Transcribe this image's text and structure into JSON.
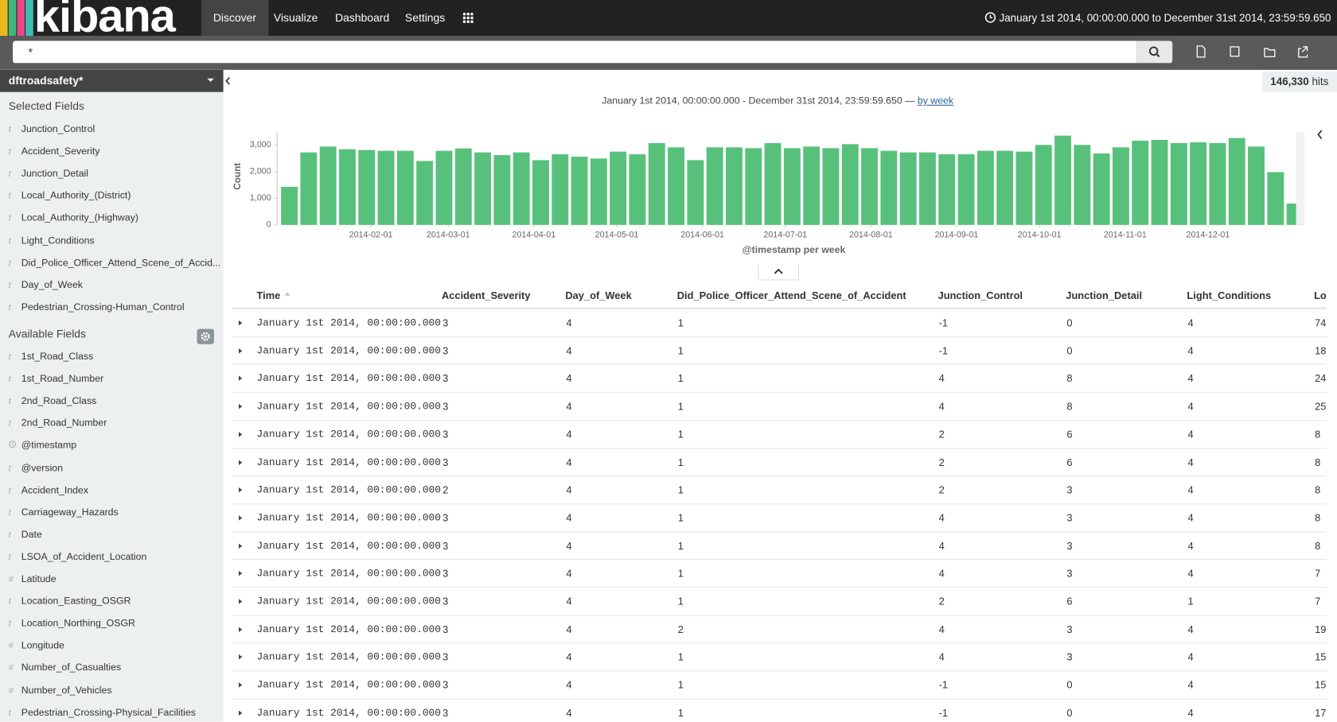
{
  "nav": {
    "logo": "kibana",
    "tabs": [
      "Discover",
      "Visualize",
      "Dashboard",
      "Settings"
    ],
    "time_range": "January 1st 2014, 00:00:00.000 to December 31st 2014, 23:59:59.650"
  },
  "search": {
    "query": "*"
  },
  "sidebar": {
    "index_pattern": "dftroadsafety*",
    "selected_title": "Selected Fields",
    "selected_fields": [
      {
        "type": "t",
        "name": "Junction_Control"
      },
      {
        "type": "t",
        "name": "Accident_Severity"
      },
      {
        "type": "t",
        "name": "Junction_Detail"
      },
      {
        "type": "t",
        "name": "Local_Authority_(District)"
      },
      {
        "type": "t",
        "name": "Local_Authority_(Highway)"
      },
      {
        "type": "t",
        "name": "Light_Conditions"
      },
      {
        "type": "t",
        "name": "Did_Police_Officer_Attend_Scene_of_Accid..."
      },
      {
        "type": "t",
        "name": "Day_of_Week"
      },
      {
        "type": "t",
        "name": "Pedestrian_Crossing-Human_Control"
      }
    ],
    "available_title": "Available Fields",
    "available_fields": [
      {
        "type": "t",
        "name": "1st_Road_Class"
      },
      {
        "type": "t",
        "name": "1st_Road_Number"
      },
      {
        "type": "t",
        "name": "2nd_Road_Class"
      },
      {
        "type": "t",
        "name": "2nd_Road_Number"
      },
      {
        "type": null,
        "name": "@timestamp"
      },
      {
        "type": "t",
        "name": "@version"
      },
      {
        "type": "t",
        "name": "Accident_Index"
      },
      {
        "type": "t",
        "name": "Carriageway_Hazards"
      },
      {
        "type": "t",
        "name": "Date"
      },
      {
        "type": "t",
        "name": "LSOA_of_Accident_Location"
      },
      {
        "type": "#",
        "name": "Latitude"
      },
      {
        "type": "t",
        "name": "Location_Easting_OSGR"
      },
      {
        "type": "t",
        "name": "Location_Northing_OSGR"
      },
      {
        "type": "#",
        "name": "Longitude"
      },
      {
        "type": "#",
        "name": "Number_of_Casualties"
      },
      {
        "type": "#",
        "name": "Number_of_Vehicles"
      },
      {
        "type": "t",
        "name": "Pedestrian_Crossing-Physical_Facilities"
      }
    ]
  },
  "hits": {
    "count": "146,330",
    "label": "hits"
  },
  "chart_data": {
    "type": "bar",
    "title": "January 1st 2014, 00:00:00.000 - December 31st 2014, 23:59:59.650 —",
    "interval_link": "by week",
    "x_label": "@timestamp per week",
    "y_label": "Count",
    "color": "#57c17b",
    "categories": [
      null,
      null,
      null,
      null,
      null,
      null,
      null,
      null,
      null,
      null,
      null,
      null,
      null,
      null,
      null,
      null,
      null,
      null,
      null,
      null,
      null,
      null,
      null,
      null,
      null,
      null,
      null,
      null,
      null,
      null,
      null,
      null,
      null,
      null,
      null,
      null,
      null,
      null,
      null,
      null,
      null,
      null,
      null,
      null,
      null,
      null,
      null,
      null,
      null,
      null,
      null,
      null,
      null
    ],
    "values": [
      1430,
      2720,
      2940,
      2840,
      2810,
      2780,
      2780,
      2400,
      2780,
      2870,
      2720,
      2620,
      2720,
      2430,
      2650,
      2560,
      2490,
      2750,
      2650,
      3070,
      2910,
      2430,
      2910,
      2910,
      2880,
      3070,
      2880,
      2940,
      2880,
      3030,
      2880,
      2780,
      2720,
      2720,
      2650,
      2650,
      2780,
      2780,
      2750,
      3000,
      3350,
      3000,
      2680,
      2910,
      3160,
      3190,
      3070,
      3100,
      3070,
      3260,
      2940,
      1980,
      800
    ],
    "ylim": [
      0,
      3500
    ],
    "yticks": [
      0,
      {
        "value": 1000,
        "label": "1,000"
      },
      {
        "value": 2000,
        "label": "2,000"
      },
      {
        "value": 3000,
        "label": "3,000"
      }
    ],
    "x_tick_labels": [
      "2014-02-01",
      "2014-03-01",
      "2014-04-01",
      "2014-05-01",
      "2014-06-01",
      "2014-07-01",
      "2014-08-01",
      "2014-09-01",
      "2014-10-01",
      "2014-11-01",
      "2014-12-01"
    ]
  },
  "table": {
    "columns": [
      "Time",
      "Accident_Severity",
      "Day_of_Week",
      "Did_Police_Officer_Attend_Scene_of_Accident",
      "Junction_Control",
      "Junction_Detail",
      "Light_Conditions",
      "Lo"
    ],
    "rows": [
      [
        "January 1st 2014, 00:00:00.000",
        3,
        4,
        1,
        -1,
        0,
        4,
        74
      ],
      [
        "January 1st 2014, 00:00:00.000",
        3,
        4,
        1,
        -1,
        0,
        4,
        18
      ],
      [
        "January 1st 2014, 00:00:00.000",
        3,
        4,
        1,
        4,
        8,
        4,
        24
      ],
      [
        "January 1st 2014, 00:00:00.000",
        3,
        4,
        1,
        4,
        8,
        4,
        25
      ],
      [
        "January 1st 2014, 00:00:00.000",
        3,
        4,
        1,
        2,
        6,
        4,
        8
      ],
      [
        "January 1st 2014, 00:00:00.000",
        3,
        4,
        1,
        2,
        6,
        4,
        8
      ],
      [
        "January 1st 2014, 00:00:00.000",
        2,
        4,
        1,
        2,
        3,
        4,
        8
      ],
      [
        "January 1st 2014, 00:00:00.000",
        3,
        4,
        1,
        4,
        3,
        4,
        8
      ],
      [
        "January 1st 2014, 00:00:00.000",
        3,
        4,
        1,
        4,
        3,
        4,
        8
      ],
      [
        "January 1st 2014, 00:00:00.000",
        3,
        4,
        1,
        4,
        3,
        4,
        7
      ],
      [
        "January 1st 2014, 00:00:00.000",
        3,
        4,
        1,
        2,
        6,
        1,
        7
      ],
      [
        "January 1st 2014, 00:00:00.000",
        3,
        4,
        2,
        4,
        3,
        4,
        19
      ],
      [
        "January 1st 2014, 00:00:00.000",
        3,
        4,
        1,
        4,
        3,
        4,
        15
      ],
      [
        "January 1st 2014, 00:00:00.000",
        3,
        4,
        1,
        -1,
        0,
        4,
        15
      ],
      [
        "January 1st 2014, 00:00:00.000",
        3,
        4,
        1,
        -1,
        0,
        4,
        17
      ]
    ]
  }
}
